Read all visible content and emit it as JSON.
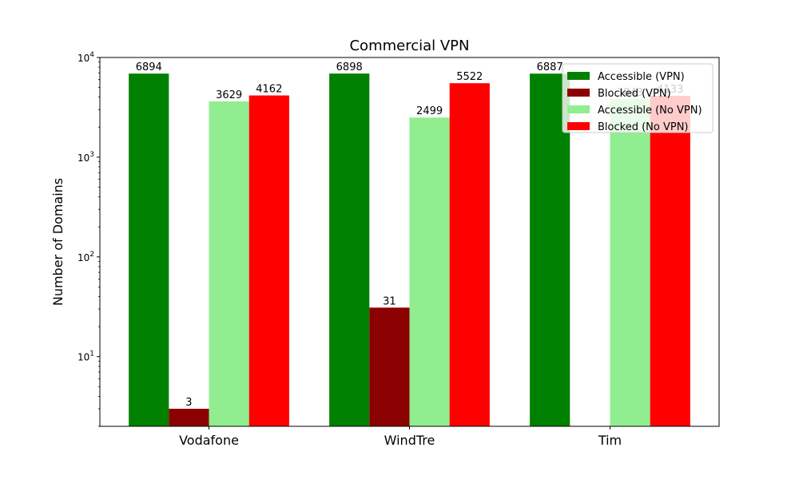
{
  "chart_data": {
    "type": "bar",
    "title": "Commercial VPN",
    "xlabel": "",
    "ylabel": "Number of Domains",
    "yscale": "log",
    "ylim": [
      2,
      10000
    ],
    "categories": [
      "Vodafone",
      "WindTre",
      "Tim"
    ],
    "series": [
      {
        "name": "Accessible (VPN)",
        "color": "#008000",
        "values": [
          6894,
          6898,
          6887
        ],
        "labels": [
          "6894",
          "6898",
          "6887"
        ]
      },
      {
        "name": "Blocked (VPN)",
        "color": "#8b0000",
        "values": [
          3,
          31,
          null
        ],
        "labels": [
          "3",
          "31",
          ""
        ]
      },
      {
        "name": "Accessible (No VPN)",
        "color": "#90ee90",
        "values": [
          3629,
          2499,
          3843
        ],
        "labels": [
          "3629",
          "2499",
          "3843"
        ]
      },
      {
        "name": "Blocked (No VPN)",
        "color": "#ff0000",
        "values": [
          4162,
          5522,
          4133
        ],
        "labels": [
          "4162",
          "5522",
          "4133"
        ]
      }
    ],
    "yticks": [
      {
        "base": "10",
        "exp": "1",
        "value": 10
      },
      {
        "base": "10",
        "exp": "2",
        "value": 100
      },
      {
        "base": "10",
        "exp": "3",
        "value": 1000
      },
      {
        "base": "10",
        "exp": "4",
        "value": 10000
      }
    ],
    "legend": {
      "position": "top-right"
    },
    "grid": false
  }
}
